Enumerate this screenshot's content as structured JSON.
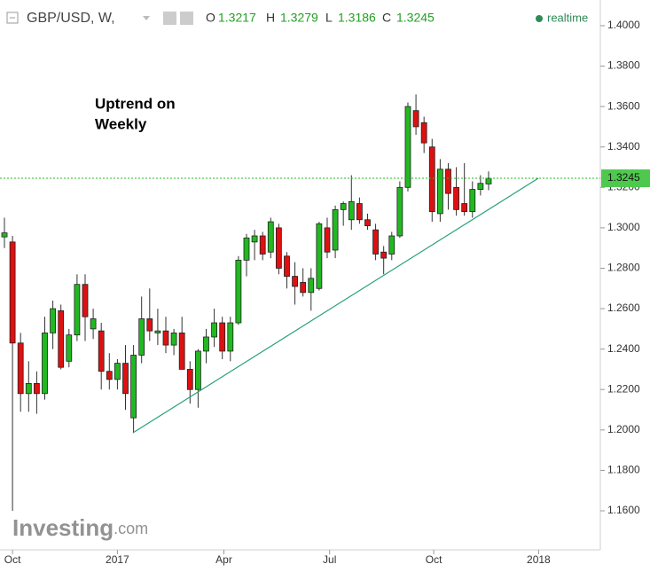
{
  "chart_data": {
    "type": "candlestick",
    "header": {
      "symbol": "GBP/USD, W,",
      "ohlc_labels": [
        "O",
        "H",
        "L",
        "C"
      ],
      "status": "realtime"
    },
    "annotation": [
      "Uptrend on",
      "Weekly"
    ],
    "watermark": [
      "Investing",
      ".com"
    ],
    "x": [
      0,
      1,
      2,
      3,
      4,
      5,
      6,
      7,
      8,
      9,
      10,
      11,
      12,
      13,
      14,
      15,
      16,
      17,
      18,
      19,
      20,
      21,
      22,
      23,
      24,
      25,
      26,
      27,
      28,
      29,
      30,
      31,
      32,
      33,
      34,
      35,
      36,
      37,
      38,
      39,
      40,
      41,
      42,
      43,
      44,
      45,
      46,
      47,
      48,
      49,
      50,
      51,
      52,
      53,
      54,
      55,
      56,
      57,
      58,
      59,
      60
    ],
    "open": [
      1.2955,
      1.293,
      1.243,
      1.218,
      1.223,
      1.218,
      1.248,
      1.259,
      1.234,
      1.247,
      1.272,
      1.25,
      1.249,
      1.229,
      1.225,
      1.233,
      1.206,
      1.237,
      1.255,
      1.248,
      1.249,
      1.242,
      1.248,
      1.23,
      1.22,
      1.239,
      1.246,
      1.253,
      1.239,
      1.253,
      1.284,
      1.293,
      1.296,
      1.288,
      1.3,
      1.286,
      1.276,
      1.273,
      1.268,
      1.27,
      1.3,
      1.289,
      1.309,
      1.304,
      1.312,
      1.304,
      1.299,
      1.288,
      1.287,
      1.296,
      1.32,
      1.358,
      1.352,
      1.34,
      1.307,
      1.329,
      1.32,
      1.312,
      1.308,
      1.319,
      1.3217
    ],
    "high": [
      1.305,
      1.296,
      1.248,
      1.234,
      1.229,
      1.256,
      1.264,
      1.262,
      1.25,
      1.277,
      1.277,
      1.26,
      1.253,
      1.238,
      1.235,
      1.242,
      1.242,
      1.266,
      1.27,
      1.26,
      1.256,
      1.25,
      1.256,
      1.234,
      1.24,
      1.25,
      1.26,
      1.256,
      1.256,
      1.286,
      1.297,
      1.299,
      1.298,
      1.305,
      1.302,
      1.288,
      1.283,
      1.28,
      1.28,
      1.303,
      1.305,
      1.311,
      1.313,
      1.326,
      1.315,
      1.307,
      1.302,
      1.291,
      1.298,
      1.323,
      1.362,
      1.366,
      1.355,
      1.344,
      1.334,
      1.332,
      1.33,
      1.332,
      1.323,
      1.326,
      1.3279
    ],
    "low": [
      1.29,
      1.16,
      1.209,
      1.209,
      1.208,
      1.215,
      1.24,
      1.23,
      1.231,
      1.244,
      1.244,
      1.245,
      1.22,
      1.22,
      1.22,
      1.21,
      1.1985,
      1.233,
      1.244,
      1.242,
      1.238,
      1.237,
      1.23,
      1.213,
      1.211,
      1.233,
      1.241,
      1.235,
      1.234,
      1.252,
      1.276,
      1.284,
      1.284,
      1.285,
      1.277,
      1.27,
      1.262,
      1.266,
      1.259,
      1.269,
      1.285,
      1.285,
      1.301,
      1.299,
      1.302,
      1.299,
      1.284,
      1.277,
      1.284,
      1.295,
      1.318,
      1.346,
      1.337,
      1.303,
      1.303,
      1.309,
      1.306,
      1.306,
      1.305,
      1.316,
      1.3186
    ],
    "close": [
      1.2975,
      1.243,
      1.218,
      1.223,
      1.218,
      1.248,
      1.26,
      1.231,
      1.247,
      1.272,
      1.256,
      1.255,
      1.229,
      1.225,
      1.233,
      1.218,
      1.237,
      1.255,
      1.249,
      1.249,
      1.242,
      1.248,
      1.23,
      1.22,
      1.239,
      1.246,
      1.253,
      1.239,
      1.253,
      1.284,
      1.295,
      1.296,
      1.287,
      1.303,
      1.28,
      1.276,
      1.271,
      1.268,
      1.275,
      1.302,
      1.288,
      1.309,
      1.312,
      1.313,
      1.304,
      1.301,
      1.287,
      1.285,
      1.296,
      1.32,
      1.36,
      1.35,
      1.342,
      1.308,
      1.329,
      1.317,
      1.309,
      1.308,
      1.319,
      1.322,
      1.3245
    ],
    "up_color": "#22b822",
    "down_color": "#dd1111",
    "trend_line": {
      "x": [
        15.93,
        66.16
      ],
      "y": [
        1.1986,
        1.3245
      ],
      "color": "#26a07a"
    },
    "xlim": [
      -0.55,
      73.85
    ],
    "xticks": [
      {
        "value": 1,
        "label": "Oct"
      },
      {
        "value": 14,
        "label": "2017"
      },
      {
        "value": 27.2,
        "label": "Apr"
      },
      {
        "value": 40.3,
        "label": "Jul"
      },
      {
        "value": 53.2,
        "label": "Oct"
      },
      {
        "value": 66.2,
        "label": "2018"
      }
    ],
    "ylim": [
      1.1407,
      1.4127
    ],
    "yticks": [
      {
        "value": 1.16,
        "label": "1.1600"
      },
      {
        "value": 1.18,
        "label": "1.1800"
      },
      {
        "value": 1.2,
        "label": "1.2000"
      },
      {
        "value": 1.22,
        "label": "1.2200"
      },
      {
        "value": 1.24,
        "label": "1.2400"
      },
      {
        "value": 1.26,
        "label": "1.2600"
      },
      {
        "value": 1.28,
        "label": "1.2800"
      },
      {
        "value": 1.3,
        "label": "1.3000"
      },
      {
        "value": 1.32,
        "label": "1.3200"
      },
      {
        "value": 1.34,
        "label": "1.3400"
      },
      {
        "value": 1.36,
        "label": "1.3600"
      },
      {
        "value": 1.38,
        "label": "1.3800"
      },
      {
        "value": 1.4,
        "label": "1.4000"
      }
    ],
    "grid": false
  }
}
